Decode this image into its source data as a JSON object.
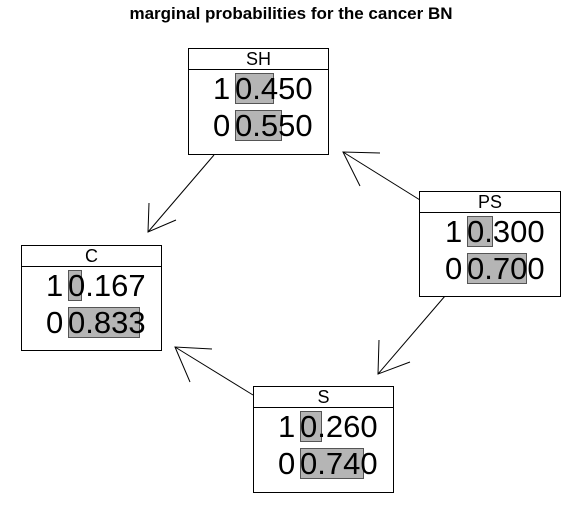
{
  "title": "marginal probabilities for the cancer BN",
  "nodes": {
    "SH": {
      "name": "SH",
      "states": [
        {
          "state": "1",
          "prob": "0.450",
          "p": 0.45
        },
        {
          "state": "0",
          "prob": "0.550",
          "p": 0.55
        }
      ]
    },
    "PS": {
      "name": "PS",
      "states": [
        {
          "state": "1",
          "prob": "0.300",
          "p": 0.3
        },
        {
          "state": "0",
          "prob": "0.700",
          "p": 0.7
        }
      ]
    },
    "C": {
      "name": "C",
      "states": [
        {
          "state": "1",
          "prob": "0.167",
          "p": 0.167
        },
        {
          "state": "0",
          "prob": "0.833",
          "p": 0.833
        }
      ]
    },
    "S": {
      "name": "S",
      "states": [
        {
          "state": "1",
          "prob": "0.260",
          "p": 0.26
        },
        {
          "state": "0",
          "prob": "0.740",
          "p": 0.74
        }
      ]
    }
  },
  "edges": [
    {
      "from": "SH",
      "to": "C"
    },
    {
      "from": "PS",
      "to": "SH"
    },
    {
      "from": "PS",
      "to": "S"
    },
    {
      "from": "S",
      "to": "C"
    }
  ]
}
